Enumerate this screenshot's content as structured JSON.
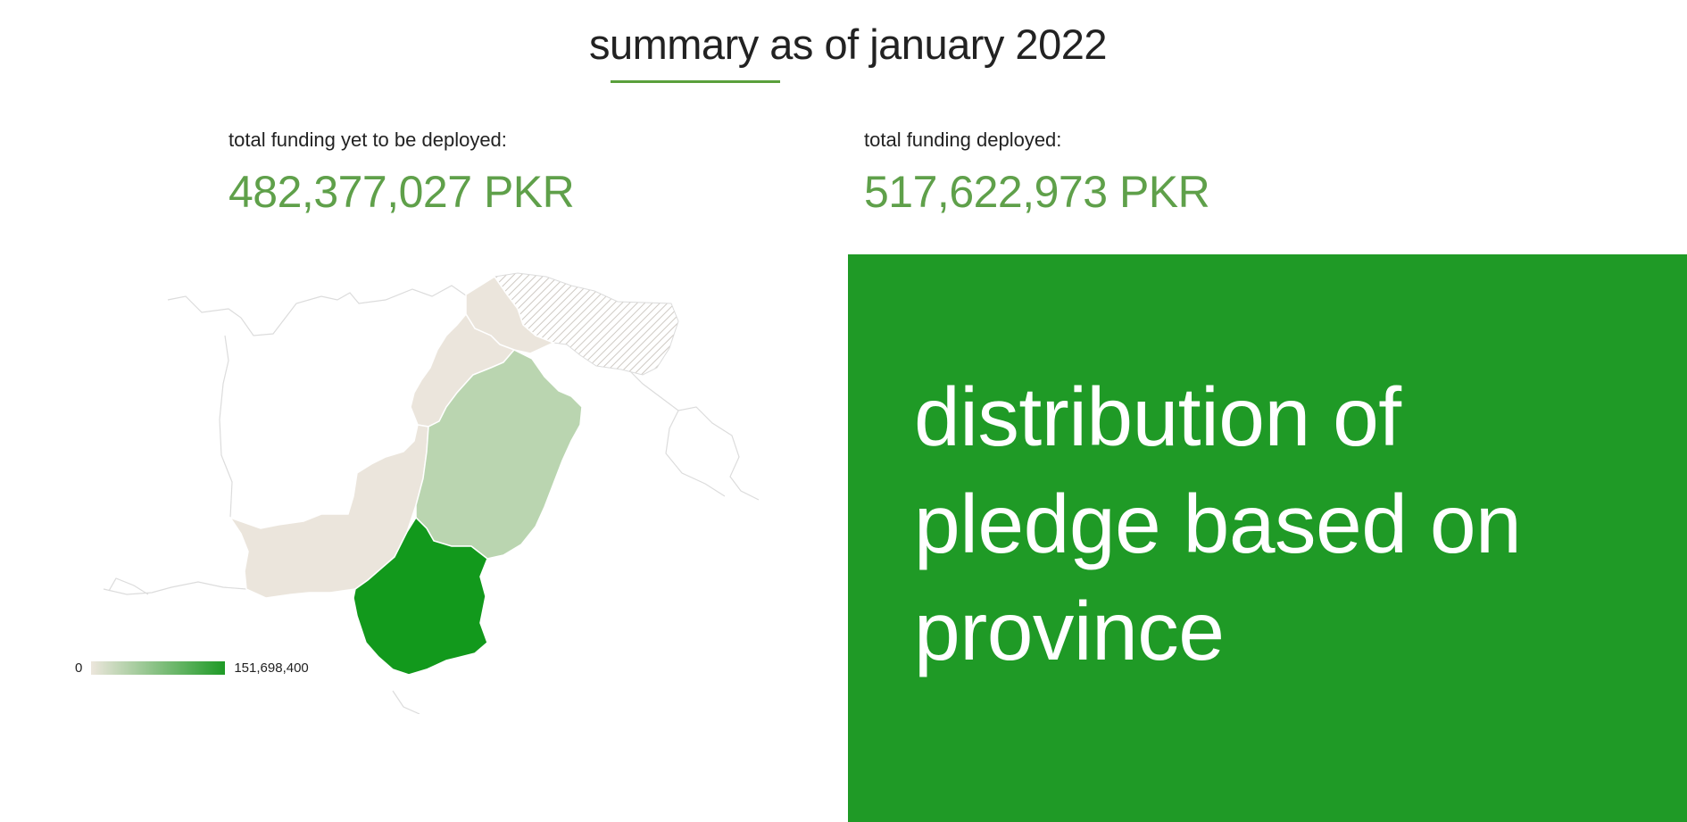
{
  "header": {
    "title": "summary as of january 2022"
  },
  "stats": {
    "yet_to_deploy_label": "total funding yet to be deployed:",
    "yet_to_deploy_value": "482,377,027 PKR",
    "deployed_label": "total funding deployed:",
    "deployed_value": "517,622,973 PKR"
  },
  "map": {
    "legend_min": "0",
    "legend_max": "151,698,400",
    "legend_color_low": "#ece6dc",
    "legend_color_high": "#1e9a26",
    "provinces": [
      {
        "region": "sindh",
        "shade": "high"
      },
      {
        "region": "punjab",
        "shade": "medium"
      },
      {
        "region": "balochistan",
        "shade": "low"
      },
      {
        "region": "khyber-pakhtunkhwa",
        "shade": "low"
      },
      {
        "region": "gilgit-baltistan",
        "shade": "low"
      },
      {
        "region": "kashmir",
        "shade": "hatched"
      }
    ]
  },
  "panel": {
    "heading": "distribution of pledge based on province",
    "background_color": "#1f9a26"
  }
}
